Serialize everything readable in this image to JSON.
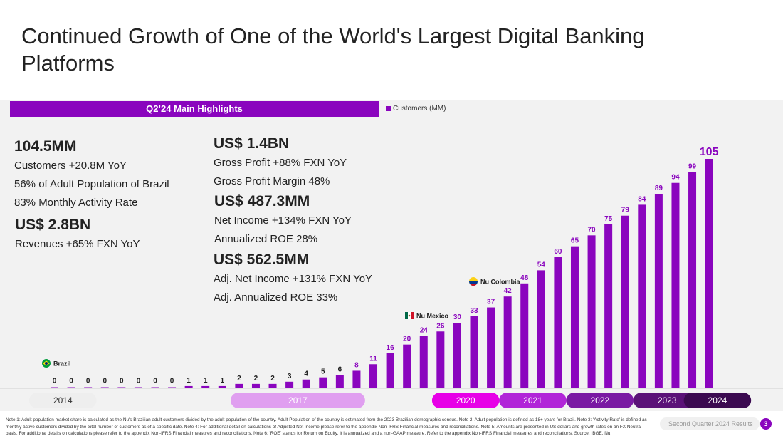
{
  "title": "Continued Growth of One of the World's Largest Digital Banking Platforms",
  "highlights_header": "Q2’24 Main Highlights",
  "kpis_left": [
    {
      "big": "104.5MM",
      "lines": [
        "Customers +20.8M YoY",
        "56% of Adult Population of Brazil",
        "83% Monthly Activity Rate"
      ]
    },
    {
      "big": "US$ 2.8BN",
      "lines": [
        "Revenues +65%  FXN YoY"
      ]
    }
  ],
  "kpis_right": [
    {
      "big": "US$ 1.4BN",
      "lines": [
        "Gross Profit +88%  FXN YoY",
        "Gross Profit Margin 48%"
      ]
    },
    {
      "big": "US$ 487.3MM",
      "lines": [
        "Net Income +134% FXN YoY",
        "Annualized ROE 28%"
      ]
    },
    {
      "big": "US$ 562.5MM",
      "lines": [
        "Adj. Net Income +131% FXN YoY",
        "Adj. Annualized ROE 33%"
      ]
    }
  ],
  "chart_data": {
    "type": "bar",
    "legend": "Customers (MM)",
    "values": [
      0,
      0,
      0,
      0,
      0,
      0,
      0,
      0,
      1,
      1,
      1,
      2,
      2,
      2,
      3,
      4,
      5,
      6,
      8,
      11,
      16,
      20,
      24,
      26,
      30,
      33,
      37,
      42,
      48,
      54,
      60,
      65,
      70,
      75,
      79,
      84,
      89,
      94,
      99,
      105
    ],
    "highlight_last_label": true,
    "markers": [
      {
        "label": "Brazil",
        "bar_index": 0,
        "flag": "brazil-flag"
      },
      {
        "label": "Nu Mexico",
        "bar_index": 21,
        "flag": "mexico-flag"
      },
      {
        "label": "Nu Colombia",
        "bar_index": 25,
        "flag": "colombia-flag"
      }
    ],
    "years": [
      {
        "label": "2014",
        "from": 0,
        "to": 1,
        "color": "#eeeeee",
        "text": "#333333"
      },
      {
        "label": "2017",
        "from": 12,
        "to": 17,
        "color": "#e09ff0",
        "text": "#ffffff"
      },
      {
        "label": "2020",
        "from": 24,
        "to": 25,
        "color": "#e700e7",
        "text": "#ffffff"
      },
      {
        "label": "2021",
        "from": 28,
        "to": 29,
        "color": "#b125d8",
        "text": "#ffffff"
      },
      {
        "label": "2022",
        "from": 32,
        "to": 33,
        "color": "#7a1aa3",
        "text": "#ffffff"
      },
      {
        "label": "2023",
        "from": 36,
        "to": 37,
        "color": "#5b1278",
        "text": "#ffffff"
      },
      {
        "label": "2024",
        "from": 39,
        "to": 40,
        "color": "#3b0a50",
        "text": "#ffffff"
      }
    ],
    "colors": {
      "bar": "#8a05be",
      "label": "#8a05be",
      "zero_label": "#222222"
    }
  },
  "footnote": "Note 1: Adult population market share is calculated as the Nu's Brazilian adult customers divided by the adult population of the country. Adult Population of the country is estimated from the 2023 Brazilian demographic census. Note 2: Adult population is defined as 18+ years for Brazil. Note 3: 'Activity Rate' is defined as monthly active customers divided by the total number of customers as of a specific date. Note 4: For additional detail on calculations of Adjusted Net Income please refer to the appendix Non-IFRS Financial measures and reconciliations. Note 5: Amounts are presented in US dollars and growth rates on an FX Neutral basis. For additional details on calculations please refer to the appendix Non-IFRS Financial measures and reconciliations. Note 6: 'ROE' stands for Return on Equity. It is annualized and a non-GAAP measure. Refer to the appendix Non-IFRS Financial measures and reconciliations.  Source: IBGE, Nu.",
  "footer_label": "Second Quarter 2024 Results",
  "page_number": "3"
}
